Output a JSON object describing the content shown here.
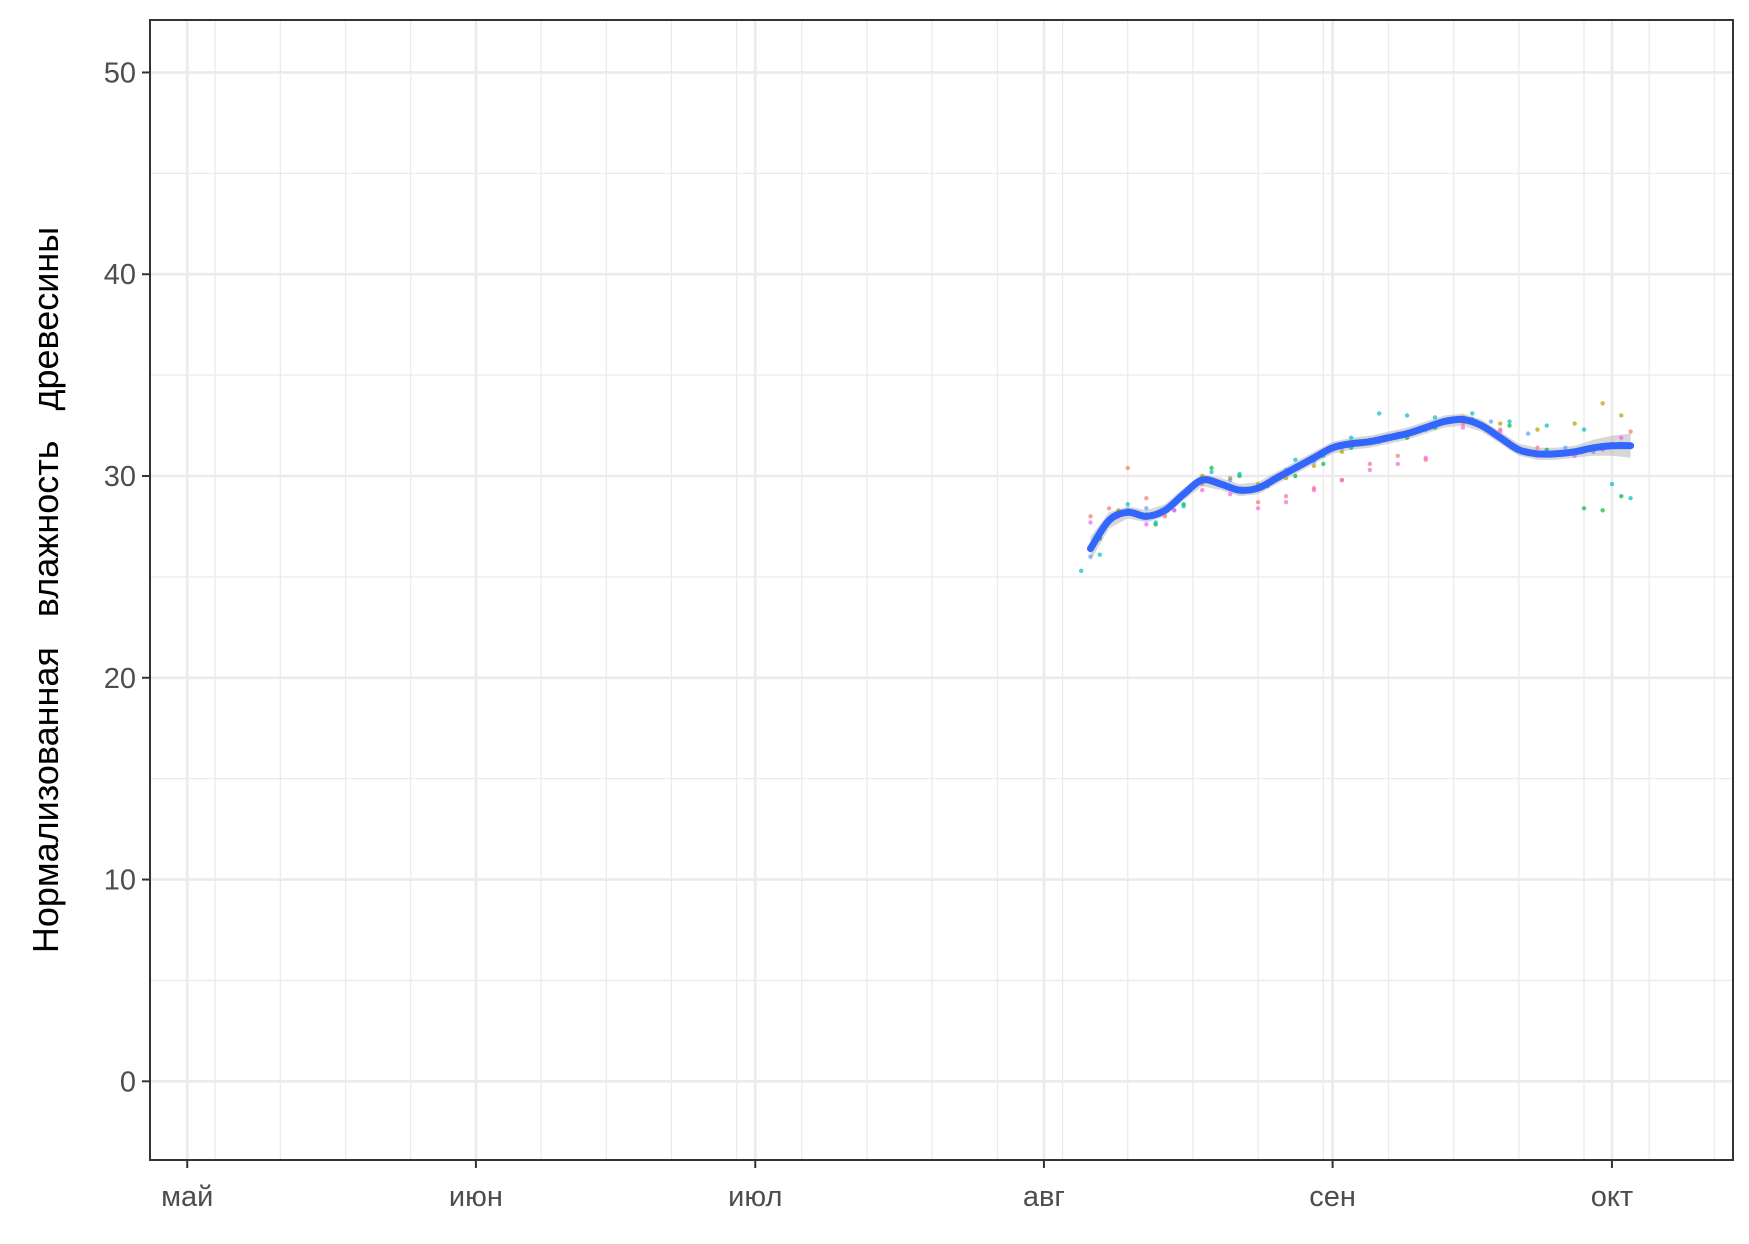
{
  "chart_data": {
    "type": "line",
    "title": "",
    "xlabel": "",
    "ylabel": "Нормализованная   влажность   древесины",
    "ylim": [
      -3.9,
      52.6
    ],
    "xlim": [
      "2014-04-27",
      "2014-10-14"
    ],
    "y_ticks": [
      0,
      10,
      20,
      30,
      40,
      50
    ],
    "x_ticks": [
      {
        "date": "2014-05-01",
        "label": "май"
      },
      {
        "date": "2014-06-01",
        "label": "июн"
      },
      {
        "date": "2014-07-01",
        "label": "июл"
      },
      {
        "date": "2014-08-01",
        "label": "авг"
      },
      {
        "date": "2014-09-01",
        "label": "сен"
      },
      {
        "date": "2014-10-01",
        "label": "окт"
      }
    ],
    "grid": true,
    "legend": "none",
    "smooth": {
      "name": "",
      "color": "#3366FF",
      "band_color": "#BDBDBD",
      "x": [
        "2014-08-06",
        "2014-08-08",
        "2014-08-10",
        "2014-08-12",
        "2014-08-14",
        "2014-08-16",
        "2014-08-18",
        "2014-08-20",
        "2014-08-22",
        "2014-08-24",
        "2014-08-26",
        "2014-08-28",
        "2014-08-30",
        "2014-09-01",
        "2014-09-03",
        "2014-09-05",
        "2014-09-07",
        "2014-09-09",
        "2014-09-11",
        "2014-09-13",
        "2014-09-15",
        "2014-09-17",
        "2014-09-19",
        "2014-09-21",
        "2014-09-23",
        "2014-09-25",
        "2014-09-27",
        "2014-09-29",
        "2014-10-01",
        "2014-10-03"
      ],
      "y": [
        26.4,
        27.8,
        28.2,
        28.0,
        28.3,
        29.1,
        29.8,
        29.6,
        29.3,
        29.4,
        29.9,
        30.4,
        30.9,
        31.4,
        31.6,
        31.7,
        31.9,
        32.1,
        32.4,
        32.7,
        32.8,
        32.5,
        31.9,
        31.3,
        31.1,
        31.1,
        31.2,
        31.4,
        31.5,
        31.5
      ],
      "lower": [
        25.8,
        27.4,
        27.9,
        27.7,
        28.0,
        28.8,
        29.5,
        29.3,
        29.0,
        29.1,
        29.6,
        30.1,
        30.6,
        31.1,
        31.3,
        31.4,
        31.6,
        31.8,
        32.1,
        32.4,
        32.5,
        32.2,
        31.6,
        31.0,
        30.8,
        30.8,
        30.9,
        31.0,
        31.0,
        30.9
      ],
      "upper": [
        27.0,
        28.2,
        28.5,
        28.3,
        28.6,
        29.4,
        30.1,
        29.9,
        29.6,
        29.7,
        30.2,
        30.7,
        31.2,
        31.7,
        31.9,
        32.0,
        32.2,
        32.4,
        32.7,
        33.0,
        33.1,
        32.8,
        32.2,
        31.6,
        31.4,
        31.4,
        31.5,
        31.8,
        32.0,
        32.1
      ]
    },
    "series": [
      {
        "color": "#F8766D",
        "x": [
          "2014-08-06",
          "2014-08-08",
          "2014-08-10",
          "2014-08-12",
          "2014-08-14",
          "2014-08-18",
          "2014-08-21",
          "2014-08-24",
          "2014-08-27",
          "2014-08-30",
          "2014-09-02",
          "2014-09-05",
          "2014-09-08",
          "2014-09-11",
          "2014-09-15",
          "2014-09-19",
          "2014-09-23",
          "2014-09-27",
          "2014-10-01",
          "2014-10-03"
        ],
        "y": [
          28.0,
          28.4,
          30.4,
          28.9,
          28.0,
          29.6,
          29.5,
          28.7,
          29.0,
          29.4,
          29.8,
          30.6,
          31.0,
          30.8,
          32.6,
          32.3,
          31.4,
          31.2,
          31.6,
          32.2
        ]
      },
      {
        "color": "#B79F00",
        "x": [
          "2014-08-07",
          "2014-08-09",
          "2014-08-12",
          "2014-08-15",
          "2014-08-18",
          "2014-08-21",
          "2014-08-24",
          "2014-08-27",
          "2014-08-30",
          "2014-09-02",
          "2014-09-05",
          "2014-09-08",
          "2014-09-11",
          "2014-09-15",
          "2014-09-19",
          "2014-09-23",
          "2014-09-27",
          "2014-09-30",
          "2014-10-02"
        ],
        "y": [
          27.0,
          28.3,
          28.1,
          28.6,
          30.0,
          29.9,
          29.6,
          29.9,
          30.5,
          31.2,
          31.8,
          32.0,
          32.3,
          32.9,
          32.6,
          32.3,
          32.6,
          33.6,
          33.0
        ]
      },
      {
        "color": "#00BA38",
        "x": [
          "2014-08-07",
          "2014-08-10",
          "2014-08-13",
          "2014-08-16",
          "2014-08-19",
          "2014-08-22",
          "2014-08-25",
          "2014-08-28",
          "2014-08-31",
          "2014-09-03",
          "2014-09-06",
          "2014-09-09",
          "2014-09-12",
          "2014-09-16",
          "2014-09-20",
          "2014-09-24",
          "2014-09-28",
          "2014-09-30",
          "2014-10-02"
        ],
        "y": [
          26.9,
          28.3,
          27.6,
          28.6,
          30.4,
          30.0,
          29.5,
          30.0,
          30.6,
          31.4,
          31.7,
          31.9,
          32.4,
          32.8,
          32.5,
          31.3,
          28.4,
          28.3,
          29.0
        ]
      },
      {
        "color": "#00BFC4",
        "x": [
          "2014-08-05",
          "2014-08-07",
          "2014-08-10",
          "2014-08-13",
          "2014-08-16",
          "2014-08-19",
          "2014-08-22",
          "2014-08-25",
          "2014-08-28",
          "2014-08-31",
          "2014-09-03",
          "2014-09-06",
          "2014-09-09",
          "2014-09-12",
          "2014-09-16",
          "2014-09-20",
          "2014-09-24",
          "2014-09-28",
          "2014-10-01",
          "2014-10-03"
        ],
        "y": [
          25.3,
          26.1,
          28.6,
          27.7,
          28.5,
          30.2,
          30.1,
          29.7,
          30.8,
          31.0,
          31.9,
          33.1,
          33.0,
          32.9,
          33.1,
          32.7,
          32.5,
          32.3,
          29.6,
          28.9
        ]
      },
      {
        "color": "#619CFF",
        "x": [
          "2014-08-06",
          "2014-08-09",
          "2014-08-12",
          "2014-08-15",
          "2014-08-18",
          "2014-08-21",
          "2014-08-24",
          "2014-08-27",
          "2014-08-30",
          "2014-09-02",
          "2014-09-05",
          "2014-09-08",
          "2014-09-11",
          "2014-09-14",
          "2014-09-18",
          "2014-09-22",
          "2014-09-26",
          "2014-09-29",
          "2014-10-02"
        ],
        "y": [
          26.0,
          28.1,
          28.4,
          28.3,
          29.7,
          29.8,
          29.5,
          30.3,
          30.7,
          31.4,
          31.7,
          32.1,
          32.3,
          32.8,
          32.7,
          32.1,
          31.4,
          31.2,
          31.6
        ]
      },
      {
        "color": "#F564E3",
        "x": [
          "2014-08-06",
          "2014-08-09",
          "2014-08-12",
          "2014-08-15",
          "2014-08-18",
          "2014-08-21",
          "2014-08-24",
          "2014-08-27",
          "2014-08-30",
          "2014-09-02",
          "2014-09-05",
          "2014-09-08",
          "2014-09-11",
          "2014-09-15",
          "2014-09-19",
          "2014-09-23",
          "2014-09-27",
          "2014-09-30",
          "2014-10-02"
        ],
        "y": [
          27.7,
          28.0,
          27.6,
          28.3,
          29.3,
          29.1,
          28.4,
          28.7,
          29.3,
          29.8,
          30.3,
          30.6,
          30.9,
          32.4,
          32.2,
          31.0,
          31.0,
          31.3,
          31.9
        ]
      }
    ]
  }
}
